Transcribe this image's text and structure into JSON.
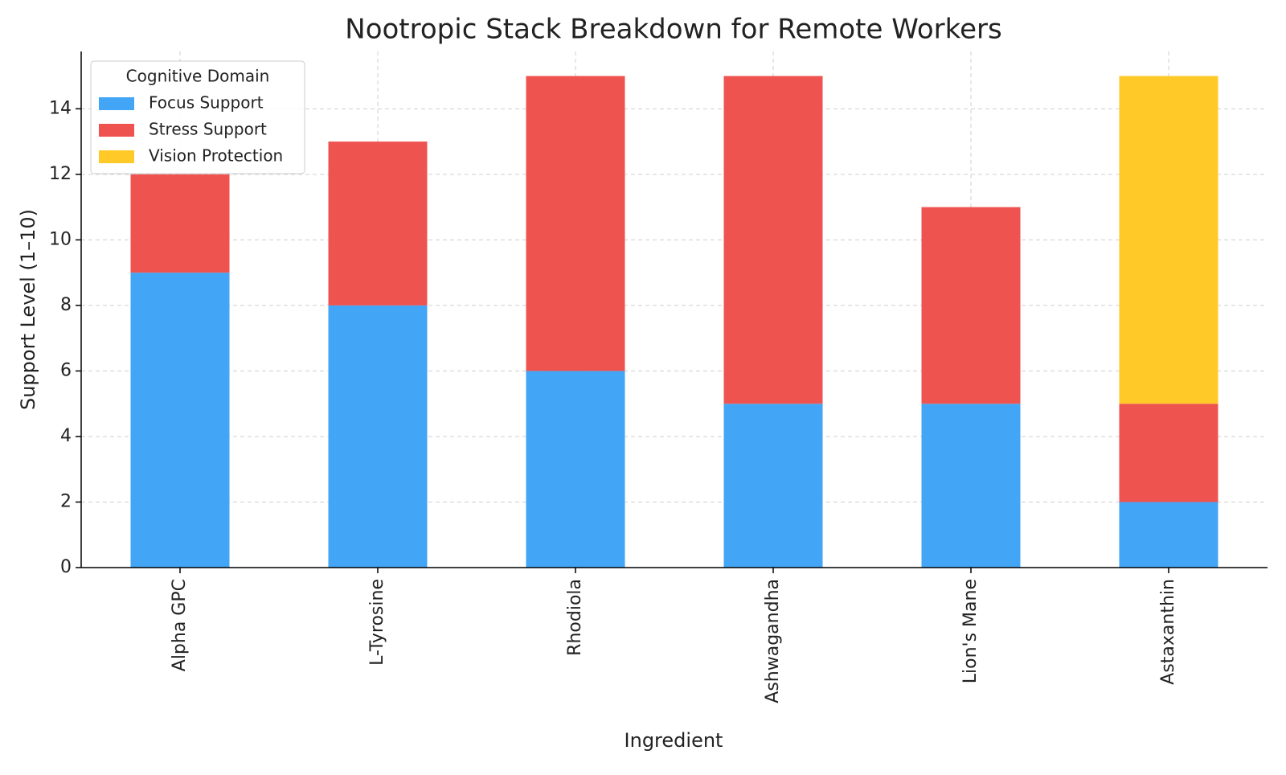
{
  "chart_data": {
    "type": "stacked_bar",
    "title": "Nootropic Stack Breakdown for Remote Workers",
    "x_label": "Ingredient",
    "y_label": "Support Level (1–10)",
    "categories": [
      "Alpha GPC",
      "L-Tyrosine",
      "Rhodiola",
      "Ashwagandha",
      "Lion's Mane",
      "Astaxanthin"
    ],
    "series": [
      {
        "name": "Focus Support",
        "color": "#42a5f5",
        "values": [
          9,
          8,
          6,
          5,
          5,
          2
        ]
      },
      {
        "name": "Stress Support",
        "color": "#ef5350",
        "values": [
          3,
          5,
          9,
          10,
          6,
          3
        ]
      },
      {
        "name": "Vision Protection",
        "color": "#ffca28",
        "values": [
          0,
          0,
          0,
          0,
          0,
          10
        ]
      }
    ],
    "legend_title": "Cognitive Domain",
    "legend": "upper left",
    "ylim": [
      0,
      15.75
    ],
    "yticks": [
      0,
      2,
      4,
      6,
      8,
      10,
      12,
      14
    ],
    "grid": true
  }
}
